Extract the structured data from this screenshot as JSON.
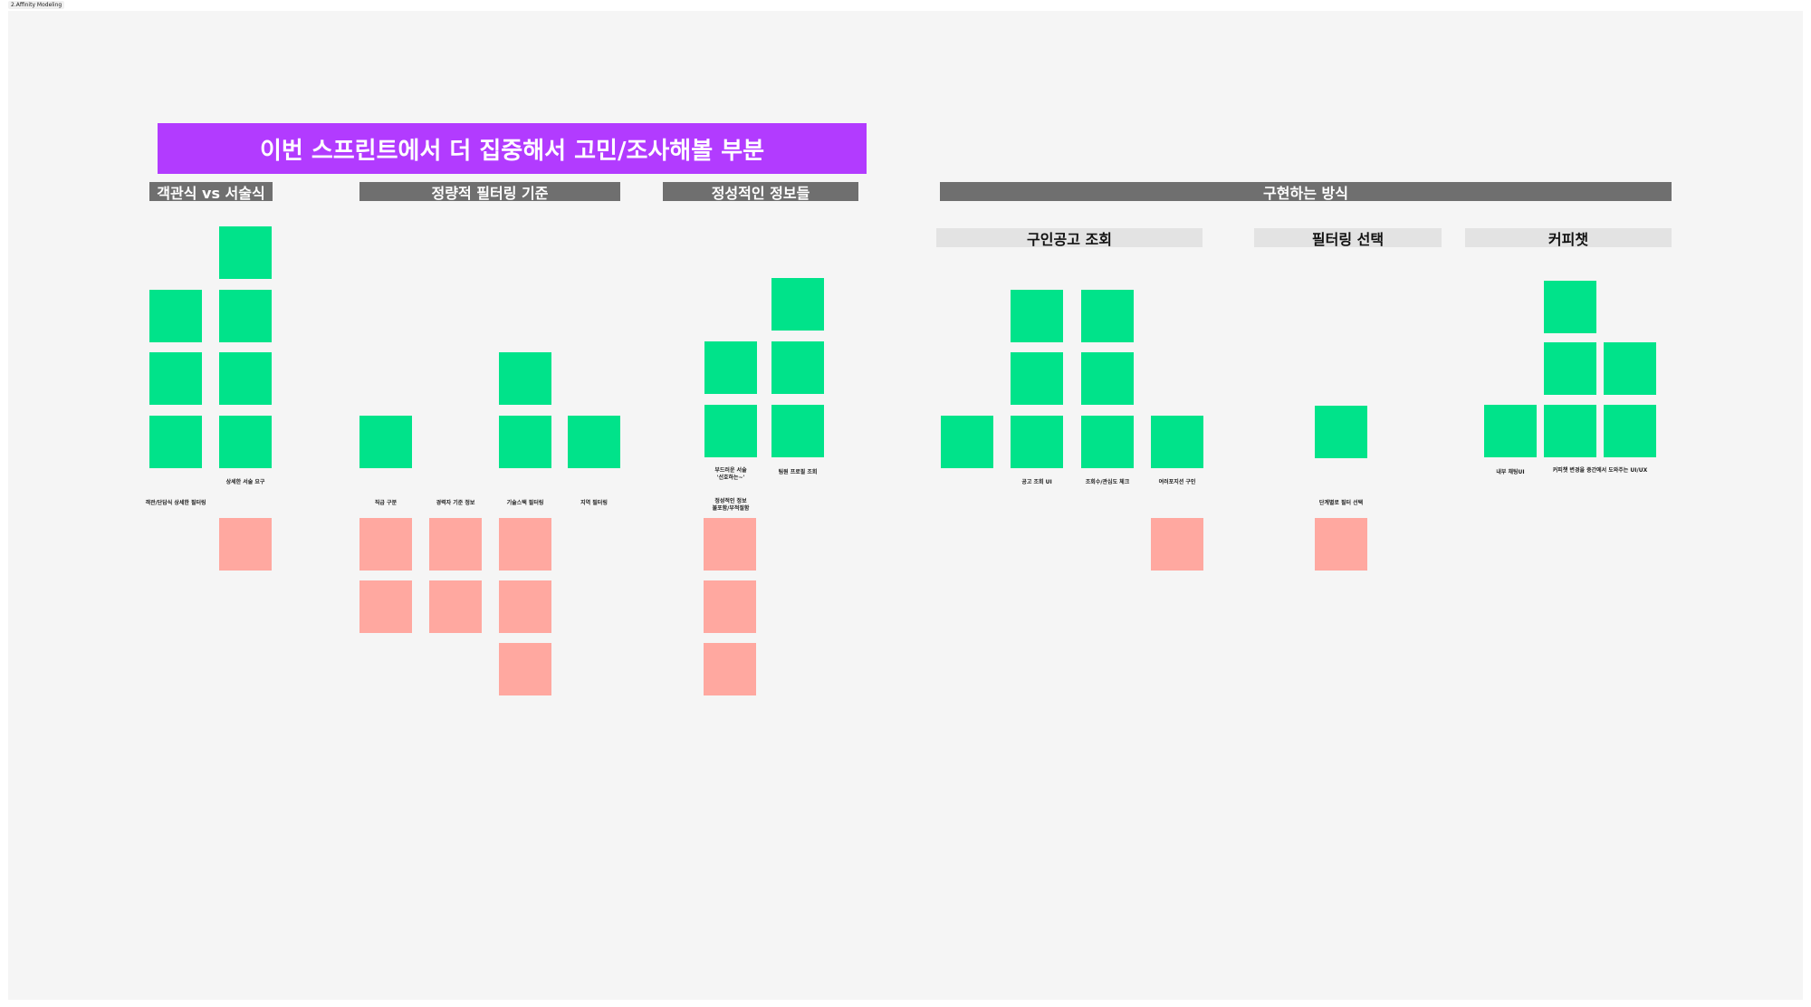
{
  "frame_label": "2.Affinity Modeling",
  "banner": "이번 스프린트에서 더 집중해서 고민/조사해볼 부분",
  "headers": {
    "objective": "객관식 vs 서술식",
    "quantitative": "정량적 필터링 기준",
    "qualitative": "정성적인 정보들",
    "implementation": "구현하는 방식"
  },
  "subheaders": {
    "job_search": "구인공고 조회",
    "filter_select": "필터링 선택",
    "coffee_chat": "커피챗"
  },
  "labels": {
    "detail_desc": "상세한 서술 요구",
    "cluster_filter": "객관/단답식 상세한 필터링",
    "job_type": "직급 구분",
    "career_info": "경력자 기준 정보",
    "tech_stack": "기술스택 필터링",
    "region": "지역 필터링",
    "soft_desc": "부드러운 서술",
    "soft_desc2": "'선호하는~'",
    "team_culture": "팀원 프로필 조회",
    "qual_info": "정성적인 정보",
    "qual_info2": "불포함/부적절함",
    "posting_ui": "공고 조회 UI",
    "views_check": "조회수/관심도 체크",
    "other_jobs": "여러포지션 구인",
    "step_filter": "단계별로 필터 선택",
    "internal_ui": "내부 채팅UI",
    "coffee_ux": "커피챗 변경을 중간에서 도와주는 UI/UX"
  }
}
